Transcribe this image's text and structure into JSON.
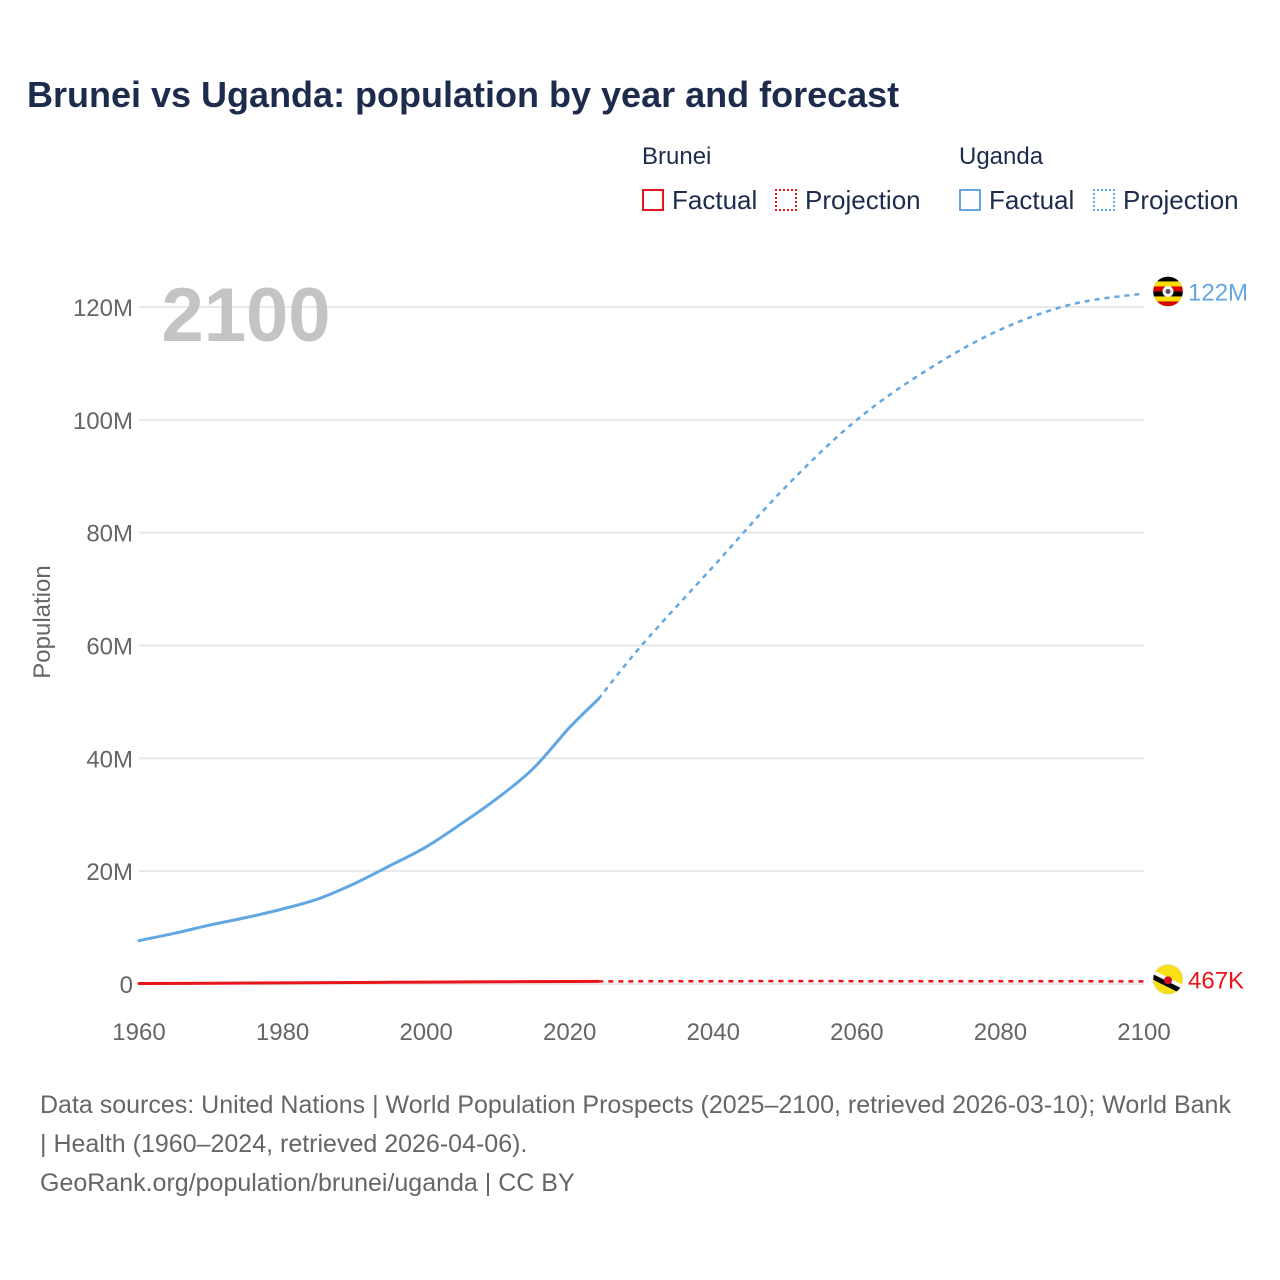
{
  "title": "Brunei vs Uganda: population by year and forecast",
  "legend": {
    "groups": [
      {
        "country": "Brunei",
        "factual_label": "Factual",
        "projection_label": "Projection",
        "color": "#e8151b"
      },
      {
        "country": "Uganda",
        "factual_label": "Factual",
        "projection_label": "Projection",
        "color": "#63a7e2"
      }
    ]
  },
  "year_watermark": "2100",
  "footer": {
    "sources": "Data sources: United Nations | World Population Prospects (2025–2100, retrieved 2026-03-10); World Bank | Health (1960–2024, retrieved 2026-04-06).",
    "credit": "GeoRank.org/population/brunei/uganda | CC BY"
  },
  "chart_data": {
    "type": "line",
    "title": "Brunei vs Uganda: population by year and forecast",
    "xlabel": "",
    "ylabel": "Population",
    "xlim": [
      1960,
      2100
    ],
    "ylim": [
      0,
      120000000
    ],
    "x_ticks": [
      1960,
      1980,
      2000,
      2020,
      2040,
      2060,
      2080,
      2100
    ],
    "x_tick_labels": [
      "1960",
      "1980",
      "2000",
      "2020",
      "2040",
      "2060",
      "2080",
      "2100"
    ],
    "y_ticks": [
      0,
      20000000,
      40000000,
      60000000,
      80000000,
      100000000,
      120000000
    ],
    "y_tick_labels": [
      "0",
      "20M",
      "40M",
      "60M",
      "80M",
      "100M",
      "120M"
    ],
    "grid": true,
    "legend_position": "top-right",
    "series": [
      {
        "name": "Brunei",
        "color": "#e8151b",
        "end_label": "467K",
        "flag": "brunei-flag-icon",
        "factual": {
          "x": [
            1960,
            1970,
            1980,
            1990,
            2000,
            2010,
            2020,
            2024
          ],
          "y": [
            80000,
            128000,
            190000,
            260000,
            333000,
            396000,
            450000,
            462000
          ]
        },
        "projection": {
          "x": [
            2024,
            2040,
            2060,
            2080,
            2100
          ],
          "y": [
            462000,
            495000,
            505000,
            490000,
            467000
          ]
        }
      },
      {
        "name": "Uganda",
        "color": "#63a7e2",
        "end_label": "122M",
        "flag": "uganda-flag-icon",
        "factual": {
          "x": [
            1960,
            1965,
            1970,
            1975,
            1980,
            1985,
            1990,
            1995,
            2000,
            2005,
            2010,
            2015,
            2020,
            2024
          ],
          "y": [
            7700000,
            9000000,
            10500000,
            11800000,
            13300000,
            15100000,
            17800000,
            21000000,
            24300000,
            28500000,
            33000000,
            38300000,
            45500000,
            50500000
          ]
        },
        "projection": {
          "x": [
            2024,
            2030,
            2040,
            2050,
            2060,
            2070,
            2080,
            2090,
            2100
          ],
          "y": [
            50500000,
            60000000,
            74000000,
            88000000,
            100000000,
            109000000,
            116000000,
            120500000,
            122400000
          ]
        }
      }
    ]
  }
}
